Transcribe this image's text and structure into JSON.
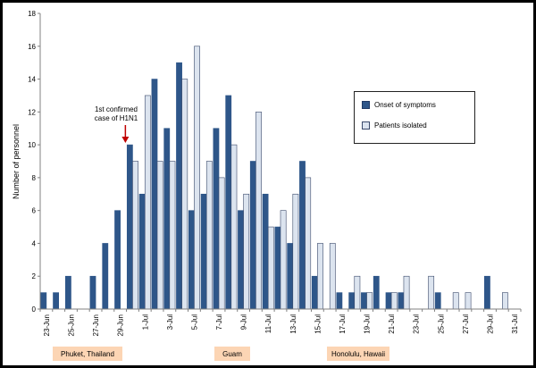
{
  "colors": {
    "onset": "#2e5689",
    "isolated": "#dce4ef",
    "isolated_border": "#3b4a6b",
    "arrow": "#c00000"
  },
  "chart_data": {
    "type": "bar",
    "ylabel": "Number of personnel",
    "ylim": [
      0,
      18
    ],
    "yticks": [
      "0",
      "2",
      "4",
      "6",
      "8",
      "10",
      "12",
      "14",
      "16",
      "18"
    ],
    "categories": [
      "23-Jun",
      "24-Jun",
      "25-Jun",
      "26-Jun",
      "27-Jun",
      "28-Jun",
      "29-Jun",
      "30-Jun",
      "1-Jul",
      "2-Jul",
      "3-Jul",
      "4-Jul",
      "5-Jul",
      "6-Jul",
      "7-Jul",
      "8-Jul",
      "9-Jul",
      "10-Jul",
      "11-Jul",
      "12-Jul",
      "13-Jul",
      "14-Jul",
      "15-Jul",
      "16-Jul",
      "17-Jul",
      "18-Jul",
      "19-Jul",
      "20-Jul",
      "21-Jul",
      "22-Jul",
      "23-Jul",
      "24-Jul",
      "25-Jul",
      "26-Jul",
      "27-Jul",
      "28-Jul",
      "29-Jul",
      "30-Jul",
      "31-Jul"
    ],
    "xtick_labels": [
      "23-Jun",
      "25-Jun",
      "27-Jun",
      "29-Jun",
      "1-Jul",
      "3-Jul",
      "5-Jul",
      "7-Jul",
      "9-Jul",
      "11-Jul",
      "13-Jul",
      "15-Jul",
      "17-Jul",
      "19-Jul",
      "21-Jul",
      "23-Jul",
      "25-Jul",
      "27-Jul",
      "29-Jul",
      "31-Jul"
    ],
    "series": [
      {
        "name": "Onset of symptoms",
        "values": [
          1,
          1,
          2,
          0,
          2,
          4,
          6,
          10,
          7,
          14,
          11,
          15,
          6,
          7,
          11,
          13,
          6,
          9,
          7,
          5,
          4,
          9,
          2,
          0,
          1,
          1,
          1,
          2,
          1,
          1,
          0,
          0,
          1,
          0,
          0,
          0,
          2,
          0,
          0
        ]
      },
      {
        "name": "Patients isolated",
        "values": [
          0,
          0,
          0,
          0,
          0,
          0,
          0,
          9,
          13,
          9,
          9,
          14,
          16,
          9,
          8,
          10,
          7,
          12,
          5,
          6,
          7,
          8,
          4,
          4,
          0,
          2,
          1,
          0,
          1,
          2,
          0,
          2,
          0,
          1,
          1,
          0,
          0,
          1,
          0
        ]
      }
    ],
    "annotation": {
      "line1": "1st confirmed",
      "line2": "case of H1N1",
      "points_to": "30-Jun"
    },
    "legend_position": "top-right",
    "grid": false
  },
  "locations": [
    "Phuket, Thailand",
    "Guam",
    "Honolulu, Hawaii"
  ]
}
